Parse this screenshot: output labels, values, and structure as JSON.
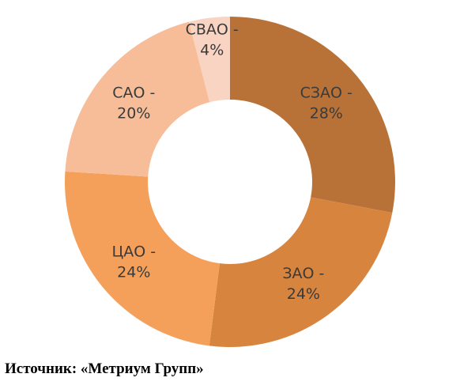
{
  "chart_data": {
    "type": "donut",
    "categories": [
      "СЗАО -",
      "ЗАО -",
      "ЦАО -",
      "САО -",
      "СВАО -"
    ],
    "values": [
      28,
      24,
      24,
      20,
      4
    ],
    "value_labels": [
      "28%",
      "24%",
      "24%",
      "20%",
      "4%"
    ],
    "colors": [
      "#b87238",
      "#d7843f",
      "#f4a05a",
      "#f6bd98",
      "#f9d4c2"
    ]
  },
  "caption": "Источник: «Метриум Групп»"
}
